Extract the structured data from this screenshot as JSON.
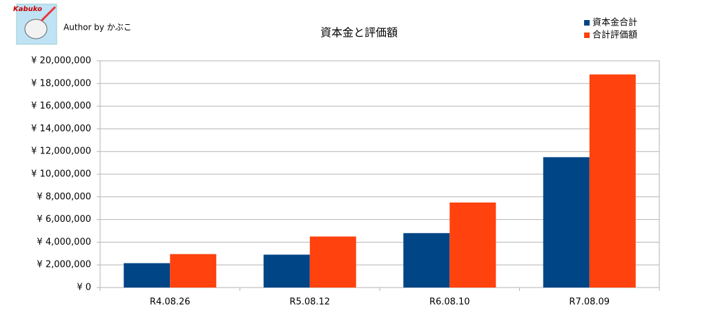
{
  "author": "Author by かぶこ",
  "logo_text": "Kabuko",
  "chart_data": {
    "type": "bar",
    "title": "資本金と評価額",
    "categories": [
      "R4.08.26",
      "R5.08.12",
      "R6.08.10",
      "R7.08.09"
    ],
    "series": [
      {
        "name": "資本金合計",
        "color": "#004586",
        "values": [
          2150000,
          2900000,
          4800000,
          11500000
        ]
      },
      {
        "name": "合計評価額",
        "color": "#ff420e",
        "values": [
          2950000,
          4500000,
          7500000,
          18800000
        ]
      }
    ],
    "ylim": [
      0,
      20000000
    ],
    "yticks": [
      {
        "value": 0,
        "label": "¥ 0"
      },
      {
        "value": 2000000,
        "label": "¥ 2,000,000"
      },
      {
        "value": 4000000,
        "label": "¥ 4,000,000"
      },
      {
        "value": 6000000,
        "label": "¥ 6,000,000"
      },
      {
        "value": 8000000,
        "label": "¥ 8,000,000"
      },
      {
        "value": 10000000,
        "label": "¥ 10,000,000"
      },
      {
        "value": 12000000,
        "label": "¥ 12,000,000"
      },
      {
        "value": 14000000,
        "label": "¥ 14,000,000"
      },
      {
        "value": 16000000,
        "label": "¥ 16,000,000"
      },
      {
        "value": 18000000,
        "label": "¥ 18,000,000"
      },
      {
        "value": 20000000,
        "label": "¥ 20,000,000"
      }
    ],
    "grid": true,
    "legend": "top-right"
  }
}
